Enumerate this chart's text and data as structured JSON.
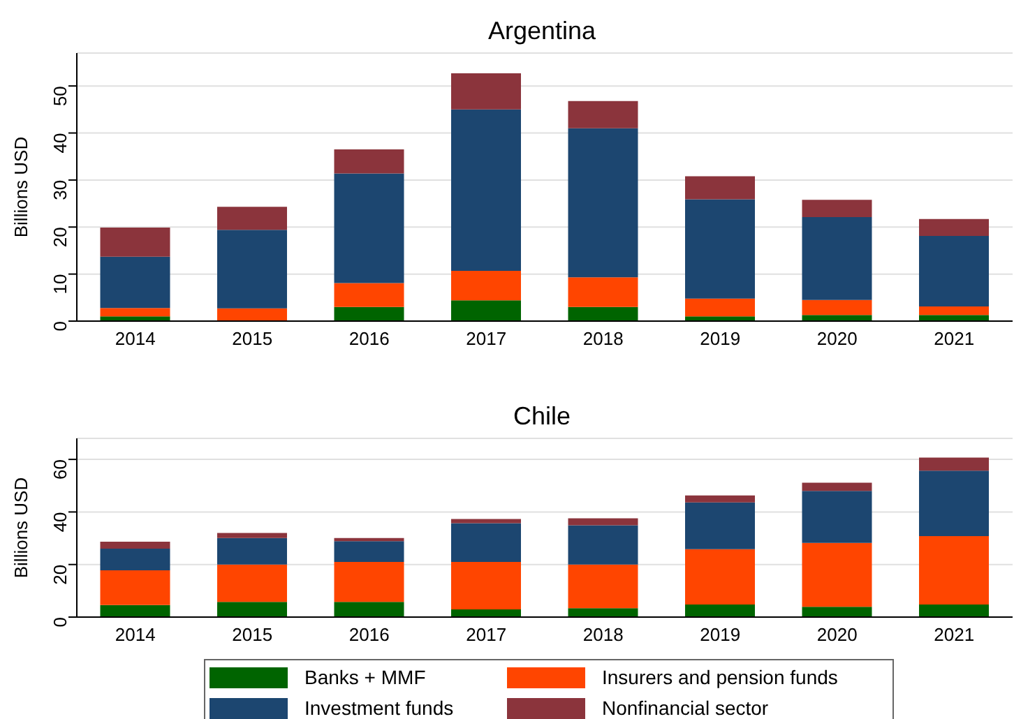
{
  "chart_data": [
    {
      "type": "bar",
      "title": "Argentina",
      "ylabel": "Billions USD",
      "stacked": true,
      "grid": "y",
      "categories": [
        "2014",
        "2015",
        "2016",
        "2017",
        "2018",
        "2019",
        "2020",
        "2021"
      ],
      "ylim": [
        0,
        57
      ],
      "yticks": [
        0,
        10,
        20,
        30,
        40,
        50
      ],
      "series": [
        {
          "color": "#006400",
          "values": [
            1,
            null,
            3,
            4.4,
            3,
            1,
            1.3,
            1.3
          ]
        },
        {
          "color": "#ff4500",
          "values": [
            1.8,
            2.7,
            5.1,
            6.3,
            6.3,
            3.8,
            3.2,
            1.8
          ]
        },
        {
          "color": "#1c4670",
          "values": [
            10.9,
            16.7,
            23.3,
            34.3,
            31.7,
            21.1,
            17.6,
            15
          ]
        },
        {
          "color": "#8b343c",
          "values": [
            6.2,
            4.9,
            5.1,
            7.7,
            5.8,
            4.9,
            3.7,
            3.6
          ]
        }
      ]
    },
    {
      "type": "bar",
      "title": "Chile",
      "ylabel": "Billions USD",
      "stacked": true,
      "grid": "y",
      "legend": "bottom",
      "categories": [
        "2014",
        "2015",
        "2016",
        "2017",
        "2018",
        "2019",
        "2020",
        "2021"
      ],
      "ylim": [
        0,
        68
      ],
      "yticks": [
        0,
        20,
        40,
        60
      ],
      "series": [
        {
          "name": "Banks + MMF",
          "color": "#006400",
          "values": [
            4.6,
            5.8,
            5.8,
            2.9,
            3.4,
            4.8,
            3.9,
            4.8
          ]
        },
        {
          "name": "Insurers and pension funds",
          "color": "#ff4500",
          "values": [
            13.2,
            14.2,
            15.2,
            18.1,
            16.6,
            21,
            24.3,
            26
          ]
        },
        {
          "name": "Investment funds",
          "color": "#1c4670",
          "values": [
            8.2,
            10.1,
            7.9,
            14.7,
            14.9,
            17.8,
            19.8,
            24.9
          ]
        },
        {
          "name": "Nonfinancial sector",
          "color": "#8b343c",
          "values": [
            2.7,
            1.9,
            1.2,
            1.6,
            2.7,
            2.7,
            3.1,
            5
          ]
        }
      ]
    }
  ]
}
